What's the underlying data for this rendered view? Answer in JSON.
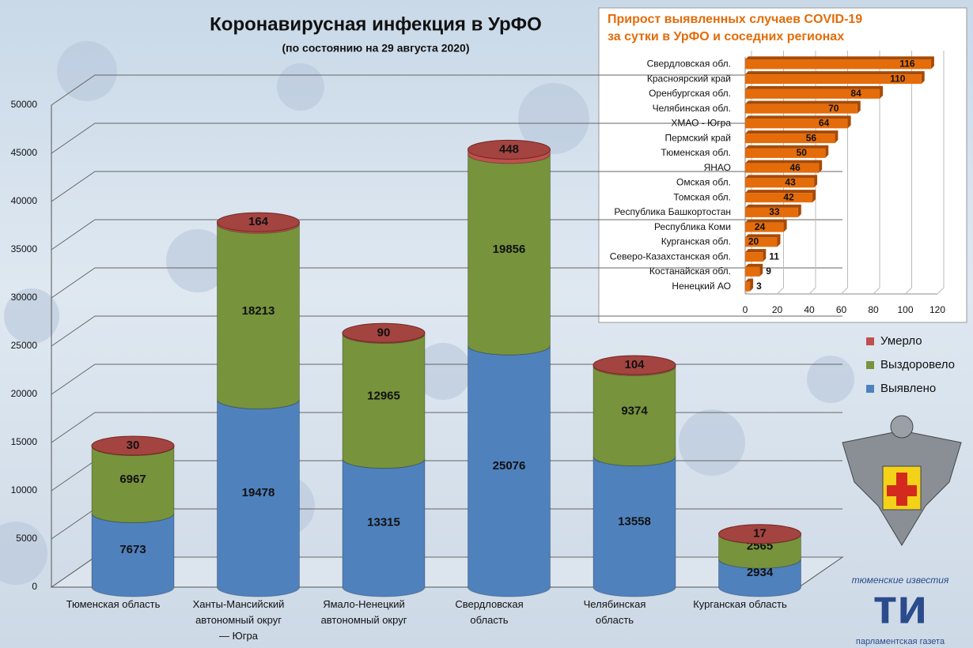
{
  "chart_data": [
    {
      "type": "bar",
      "stacked": true,
      "title": "Коронавирусная инфекция в УрФО",
      "subtitle": "(по состоянию на 29 августа 2020)",
      "categories": [
        "Тюменская область",
        "Ханты-Мансийский\nавтономный округ\n— Югра",
        "Ямало-Ненецкий\nавтономный округ",
        "Свердловская\nобласть",
        "Челябинская\nобласть",
        "Курганская область"
      ],
      "series": [
        {
          "name": "Выявлено",
          "color": "#4f81bd",
          "values": [
            7673,
            19478,
            13315,
            25076,
            13558,
            2934
          ]
        },
        {
          "name": "Выздоровело",
          "color": "#77933c",
          "values": [
            6967,
            18213,
            12965,
            19856,
            9374,
            2565
          ]
        },
        {
          "name": "Умерло",
          "color": "#c0504d",
          "values": [
            30,
            164,
            90,
            448,
            104,
            17
          ]
        }
      ],
      "ylim": [
        0,
        50000
      ],
      "yticks": [
        0,
        5000,
        10000,
        15000,
        20000,
        25000,
        30000,
        35000,
        40000,
        45000,
        50000
      ],
      "grid": true,
      "legend": "right"
    },
    {
      "type": "barh",
      "title": "Прирост выявленных случаев COVID-19\nза сутки в УрФО и соседних регионах",
      "categories": [
        "Свердловская обл.",
        "Красноярский край",
        "Оренбургская обл.",
        "Челябинская обл.",
        "ХМАО - Югра",
        "Пермский край",
        "Тюменская обл.",
        "ЯНАО",
        "Омская обл.",
        "Томская обл.",
        "Республика Башкортостан",
        "Республика Коми",
        "Курганская обл.",
        "Северо-Казахстанская обл.",
        "Костанайская обл.",
        "Ненецкий АО"
      ],
      "values": [
        116,
        110,
        84,
        70,
        64,
        56,
        50,
        46,
        43,
        42,
        33,
        24,
        20,
        11,
        9,
        3
      ],
      "color": "#e46c0a",
      "xlim": [
        0,
        120
      ],
      "xticks": [
        0,
        20,
        40,
        60,
        80,
        100,
        120
      ],
      "grid": true
    }
  ],
  "logo": {
    "top": "тюменские известия",
    "mark": "ти",
    "bottom": "парламентская газета"
  }
}
